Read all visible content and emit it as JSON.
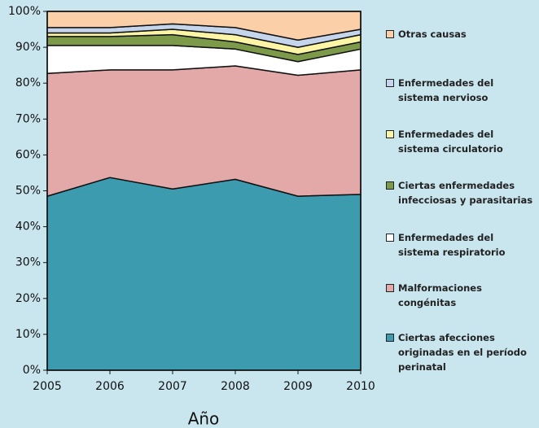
{
  "chart_data": {
    "type": "stacked_area",
    "x_label": "Año",
    "x": [
      2005,
      2006,
      2007,
      2008,
      2009,
      2010
    ],
    "xlim": [
      2005,
      2010
    ],
    "xticks": [
      2005,
      2006,
      2007,
      2008,
      2009,
      2010
    ],
    "ylim": [
      0,
      100
    ],
    "yticks": [
      {
        "value": 0,
        "label": "0%"
      },
      {
        "value": 10,
        "label": "10%"
      },
      {
        "value": 20,
        "label": "20%"
      },
      {
        "value": 30,
        "label": "30%"
      },
      {
        "value": 40,
        "label": "40%"
      },
      {
        "value": 50,
        "label": "50%"
      },
      {
        "value": 60,
        "label": "60%"
      },
      {
        "value": 70,
        "label": "70%"
      },
      {
        "value": 80,
        "label": "80%"
      },
      {
        "value": 90,
        "label": "90%"
      },
      {
        "value": 100,
        "label": "100%"
      }
    ],
    "series": [
      {
        "name": "Ciertas afecciones originadas en el período perinatal",
        "color": "#3d9bb0",
        "values": [
          48.5,
          53.7,
          50.5,
          53.2,
          48.5,
          49
        ]
      },
      {
        "name": "Malformaciones congénitas",
        "color": "#e2a9a8",
        "values": [
          34.2,
          30.0,
          33.2,
          31.6,
          33.7,
          34.7
        ]
      },
      {
        "name": "Enfermedades del sistema respiratorio",
        "color": "#ffffff",
        "values": [
          7.8,
          6.8,
          6.8,
          4.7,
          3.8,
          5.8
        ]
      },
      {
        "name": "Ciertas enfermedades infecciosas y parasitarias",
        "color": "#7c9a4a",
        "values": [
          2.5,
          2.5,
          3.0,
          2.0,
          2.0,
          2.0
        ]
      },
      {
        "name": "Enfermedades del sistema circulatorio",
        "color": "#fdf5a6",
        "values": [
          1,
          1,
          1.5,
          2,
          2,
          2
        ]
      },
      {
        "name": "Enfermedades del sistema nervioso",
        "color": "#c5d6ec",
        "values": [
          1.5,
          1.5,
          1.5,
          2,
          2,
          1.5
        ]
      },
      {
        "name": "Otras causas",
        "color": "#fbd0a9",
        "values": [
          4.5,
          4.5,
          3.5,
          4.5,
          8,
          5
        ]
      }
    ]
  }
}
